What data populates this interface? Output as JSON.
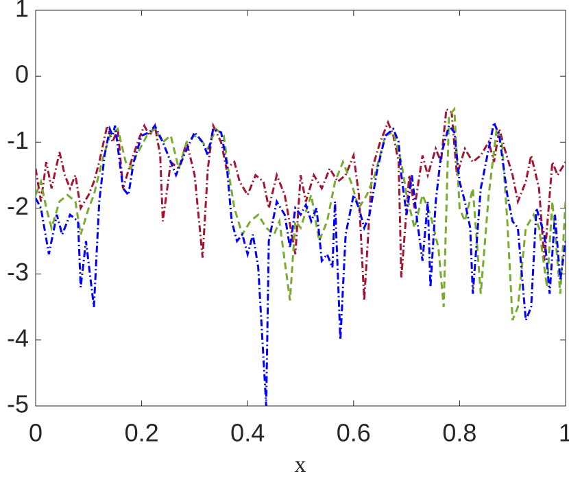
{
  "chart_data": {
    "type": "line",
    "xlabel": "x",
    "xlim": [
      0,
      1
    ],
    "ylim": [
      -5,
      1
    ],
    "xticks": [
      0,
      0.2,
      0.4,
      0.6,
      0.8,
      1
    ],
    "yticks": [
      -5,
      -4,
      -3,
      -2,
      -1,
      0,
      1
    ],
    "grid": false,
    "series": [
      {
        "color": "#a2142f",
        "dash": "10 4 2 4",
        "x": [
          0,
          0.01,
          0.02,
          0.03,
          0.045,
          0.055,
          0.065,
          0.075,
          0.085,
          0.1,
          0.11,
          0.12,
          0.135,
          0.145,
          0.155,
          0.165,
          0.18,
          0.195,
          0.205,
          0.215,
          0.225,
          0.235,
          0.24,
          0.255,
          0.27,
          0.285,
          0.3,
          0.315,
          0.325,
          0.335,
          0.35,
          0.36,
          0.375,
          0.385,
          0.4,
          0.415,
          0.43,
          0.44,
          0.455,
          0.47,
          0.49,
          0.5,
          0.51,
          0.525,
          0.54,
          0.555,
          0.57,
          0.585,
          0.6,
          0.61,
          0.62,
          0.635,
          0.65,
          0.665,
          0.675,
          0.685,
          0.69,
          0.705,
          0.715,
          0.73,
          0.74,
          0.755,
          0.765,
          0.775,
          0.785,
          0.795,
          0.81,
          0.825,
          0.84,
          0.855,
          0.865,
          0.875,
          0.885,
          0.9,
          0.91,
          0.925,
          0.935,
          0.95,
          0.96,
          0.975,
          0.985,
          1
        ],
        "values": [
          -1.4,
          -1.9,
          -1.3,
          -1.7,
          -1.15,
          -1.5,
          -1.7,
          -1.5,
          -2.0,
          -1.8,
          -1.6,
          -1.3,
          -0.75,
          -1.0,
          -0.8,
          -1.7,
          -1.3,
          -0.95,
          -0.75,
          -0.9,
          -0.75,
          -1.2,
          -2.2,
          -1.3,
          -1.4,
          -1.0,
          -1.5,
          -2.75,
          -1.4,
          -0.75,
          -1.0,
          -1.4,
          -1.3,
          -1.6,
          -1.8,
          -1.5,
          -1.6,
          -2.0,
          -1.5,
          -1.8,
          -2.7,
          -1.5,
          -1.9,
          -1.5,
          -1.7,
          -1.4,
          -1.6,
          -1.5,
          -1.2,
          -1.8,
          -3.4,
          -1.4,
          -1.0,
          -0.7,
          -0.9,
          -1.3,
          -3.05,
          -1.5,
          -2.0,
          -1.2,
          -1.5,
          -1.1,
          -1.3,
          -0.5,
          -0.55,
          -1.5,
          -1.1,
          -1.3,
          -1.2,
          -1.0,
          -1.3,
          -0.8,
          -1.1,
          -1.5,
          -1.9,
          -1.6,
          -1.2,
          -1.7,
          -2.8,
          -1.3,
          -1.5,
          -1.3
        ]
      },
      {
        "color": "#77ac30",
        "dash": "10 6",
        "x": [
          0,
          0.01,
          0.02,
          0.03,
          0.045,
          0.06,
          0.075,
          0.085,
          0.1,
          0.11,
          0.125,
          0.14,
          0.155,
          0.17,
          0.18,
          0.19,
          0.21,
          0.225,
          0.24,
          0.255,
          0.27,
          0.285,
          0.3,
          0.315,
          0.325,
          0.34,
          0.355,
          0.365,
          0.375,
          0.39,
          0.405,
          0.42,
          0.435,
          0.45,
          0.46,
          0.48,
          0.49,
          0.5,
          0.52,
          0.535,
          0.55,
          0.565,
          0.58,
          0.595,
          0.61,
          0.625,
          0.64,
          0.66,
          0.675,
          0.69,
          0.7,
          0.715,
          0.73,
          0.745,
          0.76,
          0.77,
          0.78,
          0.79,
          0.8,
          0.81,
          0.825,
          0.84,
          0.855,
          0.87,
          0.88,
          0.89,
          0.9,
          0.91,
          0.925,
          0.94,
          0.95,
          0.965,
          0.975,
          0.99,
          1
        ],
        "values": [
          -1.8,
          -1.6,
          -2.0,
          -2.3,
          -1.9,
          -1.8,
          -1.9,
          -2.4,
          -2.0,
          -1.8,
          -1.3,
          -0.9,
          -0.8,
          -1.3,
          -1.4,
          -1.2,
          -0.9,
          -0.8,
          -1.0,
          -0.9,
          -1.4,
          -1.0,
          -0.9,
          -1.0,
          -1.1,
          -0.8,
          -0.9,
          -1.5,
          -2.0,
          -2.4,
          -2.2,
          -2.1,
          -2.3,
          -2.4,
          -2.2,
          -3.4,
          -2.2,
          -2.3,
          -1.8,
          -2.5,
          -2.2,
          -1.6,
          -1.3,
          -1.6,
          -2.0,
          -1.8,
          -1.5,
          -0.9,
          -0.85,
          -1.3,
          -1.8,
          -2.3,
          -1.8,
          -2.1,
          -2.6,
          -3.5,
          -0.6,
          -0.5,
          -2.0,
          -2.2,
          -1.7,
          -3.3,
          -1.8,
          -0.8,
          -1.0,
          -2.2,
          -3.7,
          -3.5,
          -2.3,
          -2.1,
          -2.3,
          -3.2,
          -1.9,
          -3.3,
          -1.9
        ]
      },
      {
        "color": "#0000ff",
        "dash": "10 4 2 4",
        "x": [
          0,
          0.01,
          0.025,
          0.04,
          0.05,
          0.065,
          0.08,
          0.085,
          0.095,
          0.11,
          0.12,
          0.13,
          0.14,
          0.145,
          0.15,
          0.165,
          0.175,
          0.185,
          0.2,
          0.215,
          0.225,
          0.24,
          0.255,
          0.265,
          0.28,
          0.3,
          0.315,
          0.325,
          0.335,
          0.35,
          0.36,
          0.37,
          0.38,
          0.39,
          0.4,
          0.41,
          0.42,
          0.435,
          0.44,
          0.455,
          0.47,
          0.48,
          0.49,
          0.5,
          0.51,
          0.52,
          0.53,
          0.54,
          0.55,
          0.56,
          0.565,
          0.575,
          0.585,
          0.6,
          0.61,
          0.62,
          0.63,
          0.645,
          0.66,
          0.675,
          0.685,
          0.69,
          0.7,
          0.71,
          0.72,
          0.73,
          0.74,
          0.745,
          0.755,
          0.765,
          0.78,
          0.79,
          0.8,
          0.81,
          0.82,
          0.825,
          0.84,
          0.85,
          0.865,
          0.875,
          0.89,
          0.9,
          0.91,
          0.925,
          0.935,
          0.945,
          0.96,
          0.97,
          0.98,
          0.99,
          1
        ],
        "values": [
          -1.85,
          -2.0,
          -2.7,
          -2.1,
          -2.4,
          -2.1,
          -2.2,
          -3.2,
          -2.5,
          -3.5,
          -1.9,
          -1.2,
          -0.8,
          -0.9,
          -0.75,
          -1.7,
          -1.8,
          -1.3,
          -0.9,
          -0.85,
          -0.75,
          -1.0,
          -1.3,
          -1.5,
          -1.2,
          -0.85,
          -1.0,
          -1.2,
          -0.8,
          -0.85,
          -1.3,
          -2.2,
          -2.5,
          -2.4,
          -2.7,
          -2.4,
          -2.9,
          -5.0,
          -2.5,
          -1.9,
          -2.1,
          -2.6,
          -2.0,
          -2.1,
          -1.95,
          -2.2,
          -2.0,
          -2.8,
          -2.7,
          -2.9,
          -1.9,
          -4.0,
          -2.4,
          -1.8,
          -2.0,
          -2.3,
          -2.1,
          -1.4,
          -0.9,
          -0.8,
          -1.0,
          -1.5,
          -2.1,
          -1.5,
          -2.2,
          -2.8,
          -1.9,
          -3.2,
          -1.9,
          -1.2,
          -0.75,
          -0.85,
          -1.6,
          -1.9,
          -2.3,
          -3.3,
          -1.7,
          -1.3,
          -0.7,
          -0.9,
          -1.8,
          -2.2,
          -2.3,
          -3.7,
          -3.5,
          -2.0,
          -2.4,
          -3.3,
          -2.1,
          -3.1,
          -2.5
        ]
      }
    ]
  }
}
